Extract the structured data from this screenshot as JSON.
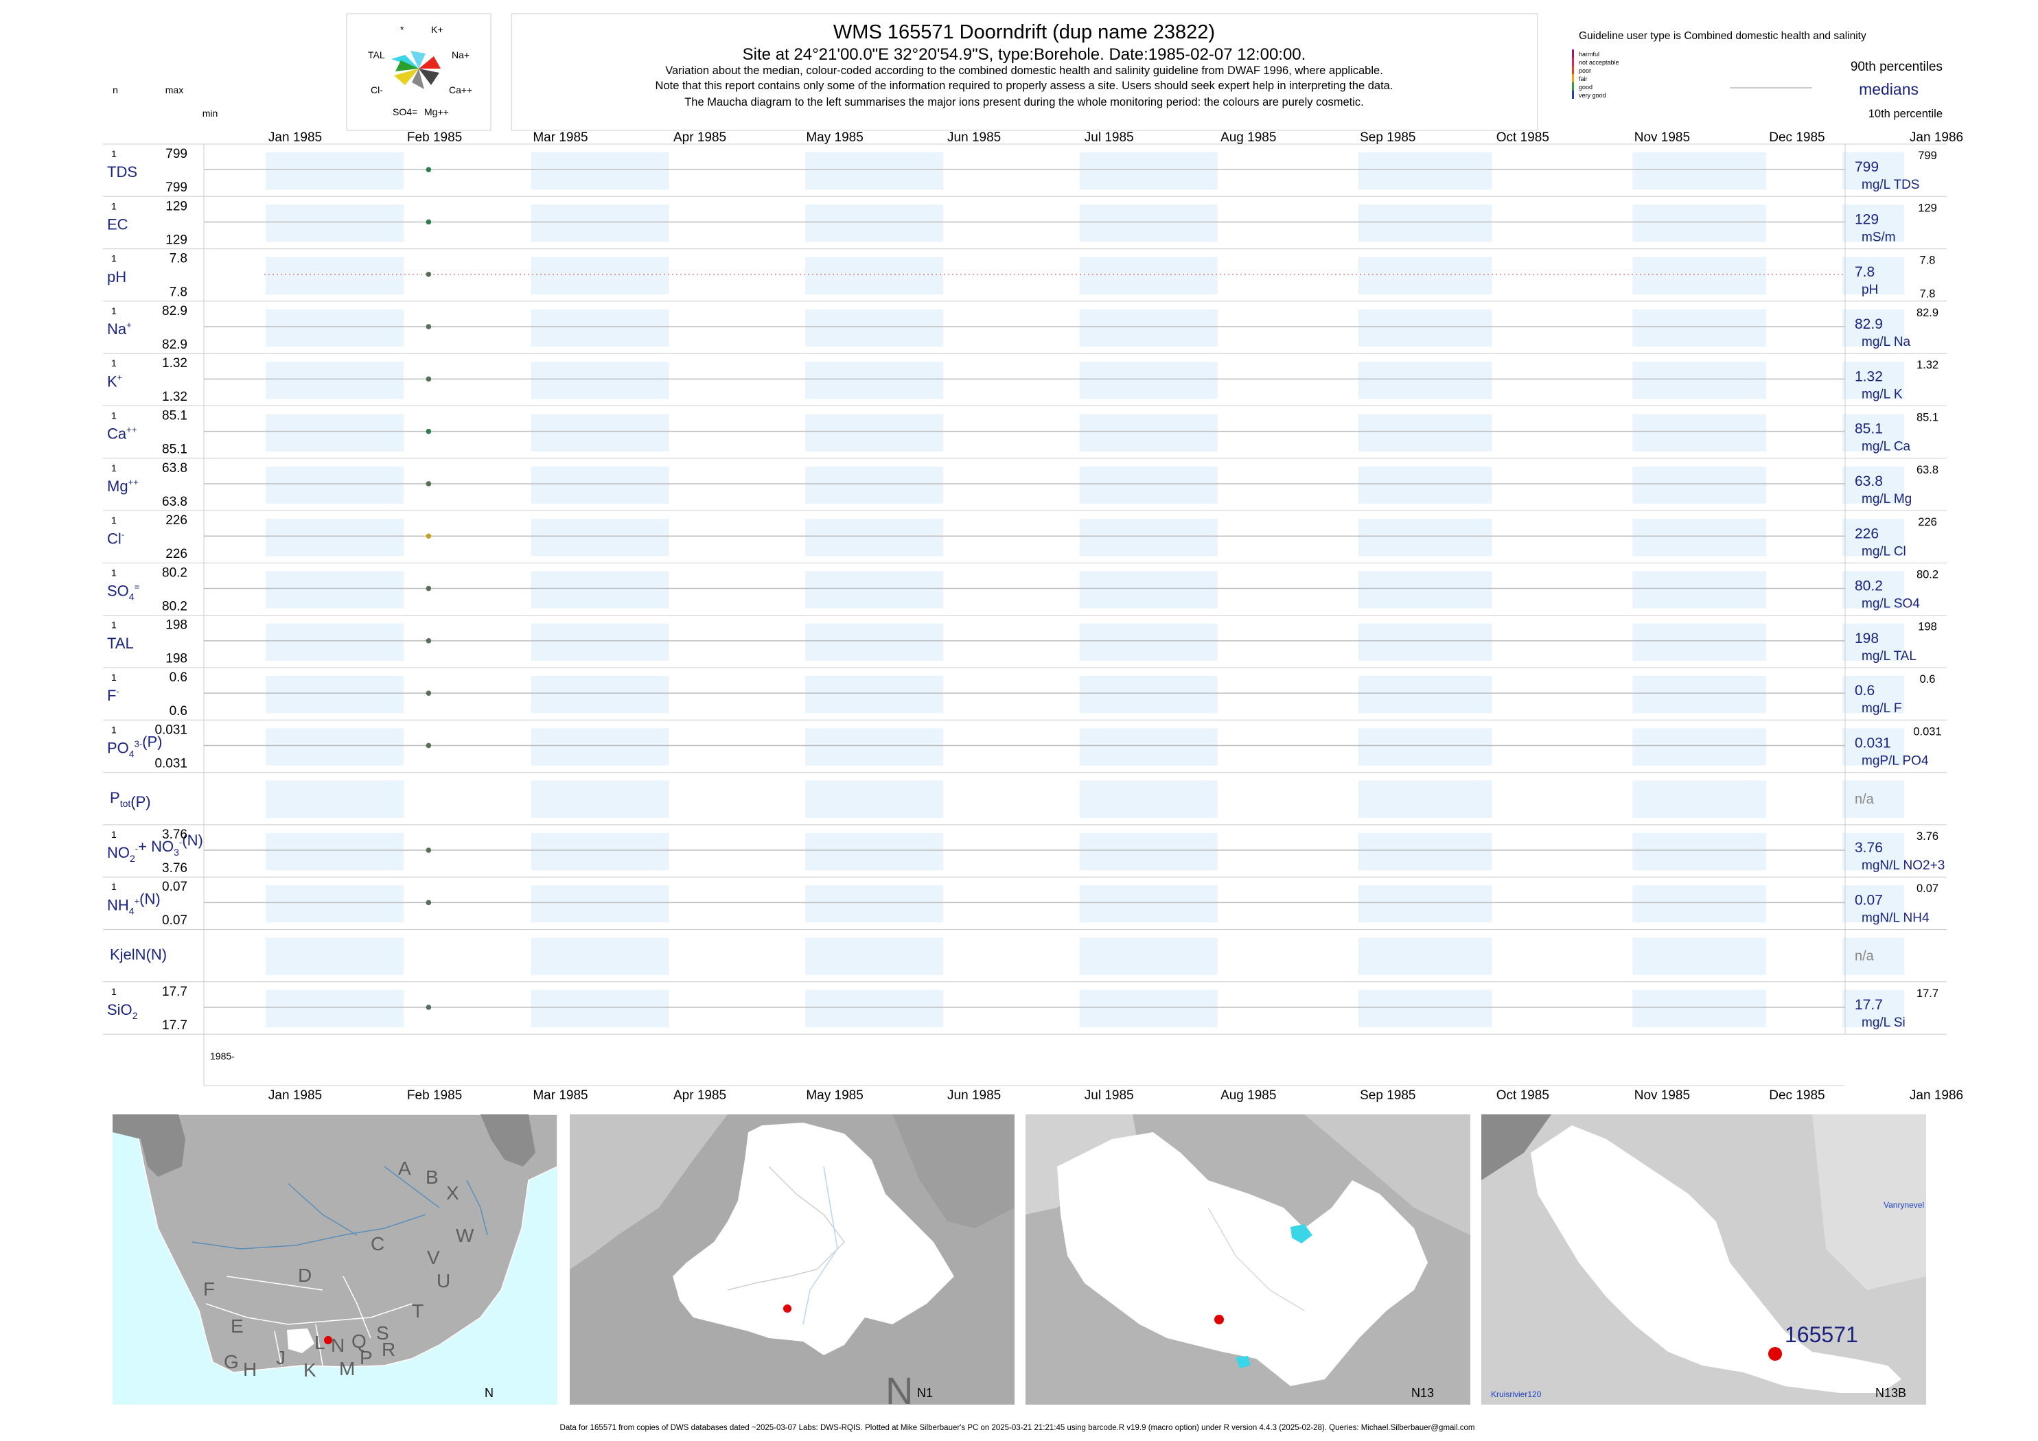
{
  "header": {
    "title": "WMS 165571  Doorndrift (dup name 23822)",
    "subtitle": "Site at 24°21'00.0\"E 32°20'54.9\"S, type:Borehole. Date:1985-02-07 12:00:00.",
    "notes": [
      "Variation about the median,  colour-coded according to the combined domestic health and salinity guideline from DWAF 1996, where applicable.",
      "Note that this report contains only some of the information required to properly assess a site. Users should seek expert help in interpreting the data.",
      "The Maucha diagram to the left summarises the major ions present during the whole monitoring period: the colours are purely cosmetic."
    ]
  },
  "column_heads": {
    "n": "n",
    "max": "max",
    "min": "min"
  },
  "maucha": {
    "labels": [
      "*",
      "K+",
      "Na+",
      "Ca++",
      "Mg++",
      "SO4=",
      "Cl-",
      "TAL"
    ]
  },
  "legend": {
    "guideline_text": "Guideline user type is Combined domestic health and salinity",
    "classes": [
      {
        "label": "harmful",
        "color": "#9b1b6e"
      },
      {
        "label": "not acceptable",
        "color": "#e0245e"
      },
      {
        "label": "poor",
        "color": "#e8431c"
      },
      {
        "label": "fair",
        "color": "#f0a21b"
      },
      {
        "label": "good",
        "color": "#2e9e3e"
      },
      {
        "label": "very good",
        "color": "#1f3fbf"
      }
    ],
    "p90": "90th percentiles",
    "median": "medians",
    "p10": "10th percentile"
  },
  "chart_data": {
    "type": "scatter",
    "x_axis": {
      "range": [
        "1985-01-01",
        "1986-01-01"
      ],
      "ticks": [
        "Jan 1985",
        "Feb 1985",
        "Mar 1985",
        "Apr 1985",
        "May 1985",
        "Jun 1985",
        "Jul 1985",
        "Aug 1985",
        "Sep 1985",
        "Oct 1985",
        "Nov 1985",
        "Dec 1985",
        "Jan 1986"
      ],
      "year_label": "1985-"
    },
    "sample_date": "1985-02-07",
    "series": [
      {
        "name": "TDS",
        "n": "1",
        "max": "799",
        "min": "799",
        "value": 799,
        "median": "799",
        "unit": "mg/L TDS",
        "p90": "799",
        "color": "#2e7d4f"
      },
      {
        "name": "EC",
        "n": "1",
        "max": "129",
        "min": "129",
        "value": 129,
        "median": "129",
        "unit": "mS/m",
        "p90": "129",
        "color": "#2e7d4f"
      },
      {
        "name": "pH",
        "n": "1",
        "max": "7.8",
        "min": "7.8",
        "value": 7.8,
        "median": "7.8",
        "unit": "pH",
        "p90": "7.8",
        "p10": "7.8",
        "color": "#5a6e5a"
      },
      {
        "name": "Na+",
        "n": "1",
        "max": "82.9",
        "min": "82.9",
        "value": 82.9,
        "median": "82.9",
        "unit": "mg/L Na",
        "p90": "82.9",
        "color": "#5a6e5a"
      },
      {
        "name": "K+",
        "n": "1",
        "max": "1.32",
        "min": "1.32",
        "value": 1.32,
        "median": "1.32",
        "unit": "mg/L K",
        "p90": "1.32",
        "color": "#5a6e5a"
      },
      {
        "name": "Ca++",
        "n": "1",
        "max": "85.1",
        "min": "85.1",
        "value": 85.1,
        "median": "85.1",
        "unit": "mg/L Ca",
        "p90": "85.1",
        "color": "#2e7d4f"
      },
      {
        "name": "Mg++",
        "n": "1",
        "max": "63.8",
        "min": "63.8",
        "value": 63.8,
        "median": "63.8",
        "unit": "mg/L Mg",
        "p90": "63.8",
        "color": "#5a6e5a"
      },
      {
        "name": "Cl-",
        "n": "1",
        "max": "226",
        "min": "226",
        "value": 226,
        "median": "226",
        "unit": "mg/L Cl",
        "p90": "226",
        "color": "#c8a02a"
      },
      {
        "name": "SO4=",
        "n": "1",
        "max": "80.2",
        "min": "80.2",
        "value": 80.2,
        "median": "80.2",
        "unit": "mg/L SO4",
        "p90": "80.2",
        "color": "#5a6e5a"
      },
      {
        "name": "TAL",
        "n": "1",
        "max": "198",
        "min": "198",
        "value": 198,
        "median": "198",
        "unit": "mg/L TAL",
        "p90": "198",
        "color": "#5a6e5a"
      },
      {
        "name": "F-",
        "n": "1",
        "max": "0.6",
        "min": "0.6",
        "value": 0.6,
        "median": "0.6",
        "unit": "mg/L F",
        "p90": "0.6",
        "color": "#5a6e5a"
      },
      {
        "name": "PO4(3-)(P)",
        "n": "1",
        "max": "0.031",
        "min": "0.031",
        "value": 0.031,
        "median": "0.031",
        "unit": "mgP/L PO4",
        "p90": "0.031",
        "color": "#5a6e5a"
      },
      {
        "name": "Ptot(P)",
        "median": "n/a"
      },
      {
        "name": "NO2- + NO3-(N)",
        "n": "1",
        "max": "3.76",
        "min": "3.76",
        "value": 3.76,
        "median": "3.76",
        "unit": "mgN/L NO2+3",
        "p90": "3.76",
        "color": "#5a6e5a"
      },
      {
        "name": "NH4+(N)",
        "n": "1",
        "max": "0.07",
        "min": "0.07",
        "value": 0.07,
        "median": "0.07",
        "unit": "mgN/L NH4",
        "p90": "0.07",
        "color": "#5a6e5a"
      },
      {
        "name": "KjelN(N)",
        "median": "n/a"
      },
      {
        "name": "SiO2",
        "n": "1",
        "max": "17.7",
        "min": "17.7",
        "value": 17.7,
        "median": "17.7",
        "unit": "mg/L Si",
        "p90": "17.7",
        "color": "#5a6e5a"
      }
    ]
  },
  "maps": {
    "panel1": {
      "letters": [
        "A",
        "B",
        "X",
        "W",
        "C",
        "V",
        "U",
        "D",
        "T",
        "F",
        "E",
        "L",
        "N",
        "Q",
        "S",
        "R",
        "G",
        "H",
        "J",
        "K",
        "M",
        "P"
      ],
      "corner": "N"
    },
    "panel2": {
      "corner": "N1",
      "big": "N"
    },
    "panel3": {
      "corner": "N13"
    },
    "panel4": {
      "corner": "N13B",
      "site": "165571",
      "place1": "Vanrynevel",
      "place2": "Kruisrivier120"
    }
  },
  "footer": "Data for 165571 from copies of DWS databases dated ~2025-03-07 Labs: DWS-RQIS. Plotted at Mike Silberbauer's PC on 2025-03-21 21:21:45 using barcode.R v19.9 (macro option) under R version 4.4.3 (2025-02-28). Queries: Michael.Silberbauer@gmail.com"
}
